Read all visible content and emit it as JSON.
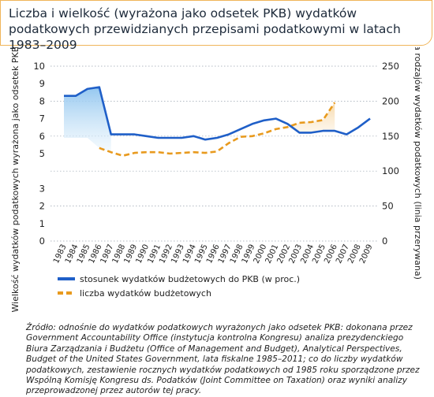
{
  "title": "Liczba i wielkość (wyrażona jako odsetek PKB) wydatków podatkowych przewidzianych przepisami podatkowymi w latach 1983–2009",
  "source": "Źródło: odnośnie do wydatków podatkowych wyrażonych jako odsetek PKB: dokonana przez Government Accountability Office (instytucja kontrolna Kongresu) analiza prezydenckiego Biura Zarządzania i Budżetu (Office of Management and Budget), Analytical Perspectives, Budget of the United States Government, lata fiskalne 1985–2011; co do liczby wydatków podatkowych, zestawienie rocznych wydatków podatkowych od 1985 roku sporządzone przez Wspólną Komisję Kongresu ds. Podatków (Joint Committee on Taxation) oraz wyniki analizy przeprowadzonej przez autorów tej pracy.",
  "colors": {
    "blue": "#1f5fc8",
    "orange": "#e89a1e",
    "blue_fill": "#8ec4ef",
    "orange_fill": "#f6d6a4"
  },
  "chart_data": {
    "type": "line",
    "categories": [
      "1983",
      "1984",
      "1985",
      "1986",
      "1987",
      "1988",
      "1989",
      "1990",
      "1991",
      "1992",
      "1993",
      "1994",
      "1995",
      "1996",
      "1997",
      "1998",
      "1999",
      "2000",
      "2001",
      "2002",
      "2003",
      "2004",
      "2005",
      "2006",
      "2007",
      "2008",
      "2009"
    ],
    "y_left_label": "Wielkość wydatków podatkowych wyrażona jako odsetek PKB (linia ciągła)",
    "y_right_label": "Liczba rodzajów wydatków podatkowych (linia przerywana)",
    "y_left_ticks": [
      "10",
      "9",
      "8",
      "7",
      "6",
      "5",
      "3",
      "2",
      "1",
      "0"
    ],
    "y_right_ticks": [
      "250",
      "200",
      "150",
      "100",
      "50",
      "0"
    ],
    "y_right_range": [
      0,
      250
    ],
    "series": [
      {
        "name": "stosunek wydatków budżetowych do PKB (w proc.)",
        "axis": "left",
        "style": "solid",
        "values": [
          8.3,
          8.3,
          8.7,
          8.8,
          6.1,
          6.1,
          6.1,
          6.0,
          5.9,
          5.9,
          5.9,
          6.0,
          5.8,
          5.9,
          6.1,
          6.4,
          6.7,
          6.9,
          7.0,
          6.7,
          6.2,
          6.2,
          6.3,
          6.3,
          6.1,
          6.5,
          7.0
        ]
      },
      {
        "name": "liczba wydatków budżetowych",
        "axis": "right",
        "style": "dashed",
        "values": [
          null,
          null,
          null,
          133,
          127,
          122,
          126,
          127,
          127,
          125,
          126,
          127,
          126,
          128,
          140,
          149,
          150,
          154,
          160,
          163,
          169,
          170,
          173,
          198,
          null,
          null,
          null
        ]
      }
    ]
  }
}
